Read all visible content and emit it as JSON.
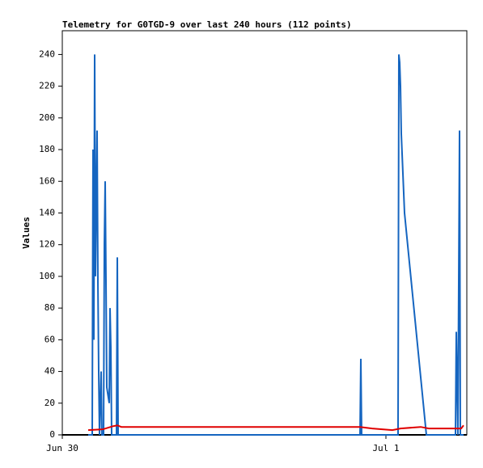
{
  "chart_data": {
    "type": "line",
    "title": "Telemetry for G0TGD-9 over last 240 hours (112 points)",
    "y_label": "Values",
    "xlim": [
      0,
      30
    ],
    "xticks": [
      {
        "value": 0,
        "label": "Jun 30"
      },
      {
        "value": 24,
        "label": "Jul 1"
      }
    ],
    "ylim": [
      0,
      255
    ],
    "yticks": [
      0,
      20,
      40,
      60,
      80,
      100,
      120,
      140,
      160,
      180,
      200,
      220,
      240
    ],
    "series": [
      {
        "color": "#1565c0",
        "x": [
          1.92,
          2.22,
          2.28,
          2.34,
          2.4,
          2.46,
          2.52,
          2.58,
          2.64,
          2.7,
          2.76,
          2.88,
          2.94,
          3.06,
          3.12,
          3.18,
          3.24,
          3.3,
          3.48,
          3.54,
          3.6,
          3.66,
          4.02,
          4.08,
          4.14,
          22.08,
          22.14,
          22.2,
          24.9,
          24.96,
          25.02,
          25.08,
          25.14,
          25.38,
          27.0,
          29.16,
          29.22,
          29.28,
          29.34,
          29.4,
          29.46,
          29.52,
          29.76
        ],
        "values": [
          0,
          0,
          180,
          60,
          240,
          100,
          145,
          192,
          97,
          40,
          0,
          40,
          0,
          0,
          120,
          160,
          97,
          30,
          20,
          80,
          55,
          0,
          0,
          112,
          0,
          0,
          48,
          0,
          0,
          240,
          235,
          220,
          190,
          140,
          0,
          0,
          65,
          32,
          0,
          96,
          192,
          0,
          0
        ]
      },
      {
        "color": "#e00000",
        "x": [
          1.92,
          3.0,
          3.78,
          4.08,
          4.38,
          22.08,
          22.98,
          24.48,
          25.08,
          26.58,
          27.18,
          28.08,
          28.98,
          29.58,
          29.76
        ],
        "values": [
          3,
          3.5,
          5.5,
          6,
          5,
          5,
          4,
          3,
          4,
          5,
          4,
          4,
          4,
          4,
          6
        ]
      }
    ]
  }
}
